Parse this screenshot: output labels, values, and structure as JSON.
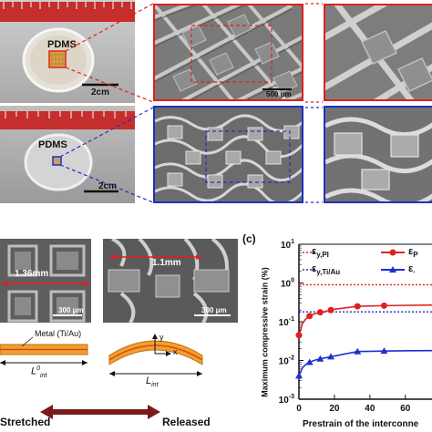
{
  "panel_a": {
    "label_top": "PDMS",
    "label_bottom": "PDMS",
    "scale_top": "2cm",
    "scale_bottom": "2cm",
    "sem_scale": "500 μm"
  },
  "panel_b": {
    "length_stretched": "1.36mm",
    "length_released": "1.1mm",
    "scale_left": "300 μm",
    "scale_right": "300 μm",
    "metal_label": "Metal (Ti/Au)",
    "l_stretched": "L",
    "l_stretched_sup": "0",
    "l_stretched_sub": "int",
    "l_released": "L",
    "l_released_sub": "int",
    "axis_y": "y",
    "axis_x": "x",
    "state_left": "Stretched",
    "state_right": "Released"
  },
  "panel_c": {
    "label": "(c)",
    "legend": {
      "eps_pi": "ε",
      "eps_pi_sub": "y,PI",
      "eps_tiau": "ε",
      "eps_tiau_sub": "y,Ti/Au",
      "series1_sym": "ε",
      "series1_sub": "P",
      "series2_sym": "ε",
      "series2_sub": "·"
    }
  },
  "chart_data": {
    "type": "line",
    "ylabel": "Maximum compressive strain (%)",
    "xlabel": "Prestrain of the interconne",
    "yscale": "log",
    "ylim": [
      0.001,
      10
    ],
    "xlim": [
      0,
      75
    ],
    "yticks": [
      "10",
      "10",
      "10",
      "10",
      "10"
    ],
    "ytick_exponents": [
      "1",
      "0",
      "-1",
      "-2",
      "-3"
    ],
    "ytick_values": [
      10,
      1,
      0.1,
      0.01,
      0.001
    ],
    "xticks": [
      "0",
      "20",
      "40",
      "60"
    ],
    "xtick_values": [
      0,
      20,
      40,
      60
    ],
    "reference_lines": [
      {
        "value": 0.9,
        "color": "#e02020"
      },
      {
        "value": 0.18,
        "color": "#2030c0"
      }
    ],
    "series": [
      {
        "color": "#e02020",
        "marker": "circle",
        "x": [
          0,
          2,
          4,
          6,
          8,
          10,
          12,
          14,
          16,
          18,
          20,
          33,
          48,
          62,
          75
        ],
        "y": [
          0.045,
          0.09,
          0.12,
          0.14,
          0.155,
          0.165,
          0.175,
          0.18,
          0.19,
          0.2,
          0.21,
          0.25,
          0.26,
          0.265,
          0.27
        ]
      },
      {
        "color": "#1f2fd0",
        "marker": "triangle",
        "x": [
          0,
          2,
          4,
          6,
          8,
          10,
          12,
          14,
          16,
          18,
          20,
          33,
          48,
          62,
          75
        ],
        "y": [
          0.004,
          0.0065,
          0.008,
          0.009,
          0.0098,
          0.0105,
          0.011,
          0.0115,
          0.012,
          0.0125,
          0.013,
          0.017,
          0.0175,
          0.0178,
          0.018
        ]
      }
    ]
  }
}
